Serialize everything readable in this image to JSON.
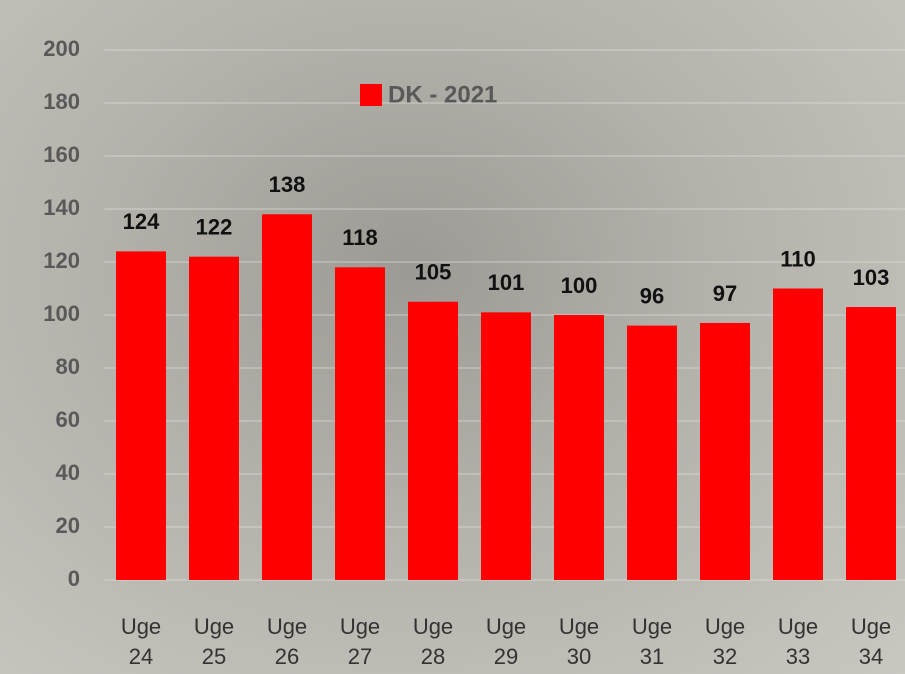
{
  "chart_data": {
    "type": "bar",
    "categories": [
      "Uge 24",
      "Uge 25",
      "Uge 26",
      "Uge 27",
      "Uge 28",
      "Uge 29",
      "Uge 30",
      "Uge 31",
      "Uge 32",
      "Uge 33",
      "Uge 34"
    ],
    "series": [
      {
        "name": "DK - 2021",
        "color": "#ff0000",
        "values": [
          124,
          122,
          138,
          118,
          105,
          101,
          100,
          96,
          97,
          110,
          103
        ]
      }
    ],
    "ylim": [
      0,
      200
    ],
    "yticks": [
      0,
      20,
      40,
      60,
      80,
      100,
      120,
      140,
      160,
      180,
      200
    ],
    "grid": true,
    "legend": "top"
  }
}
